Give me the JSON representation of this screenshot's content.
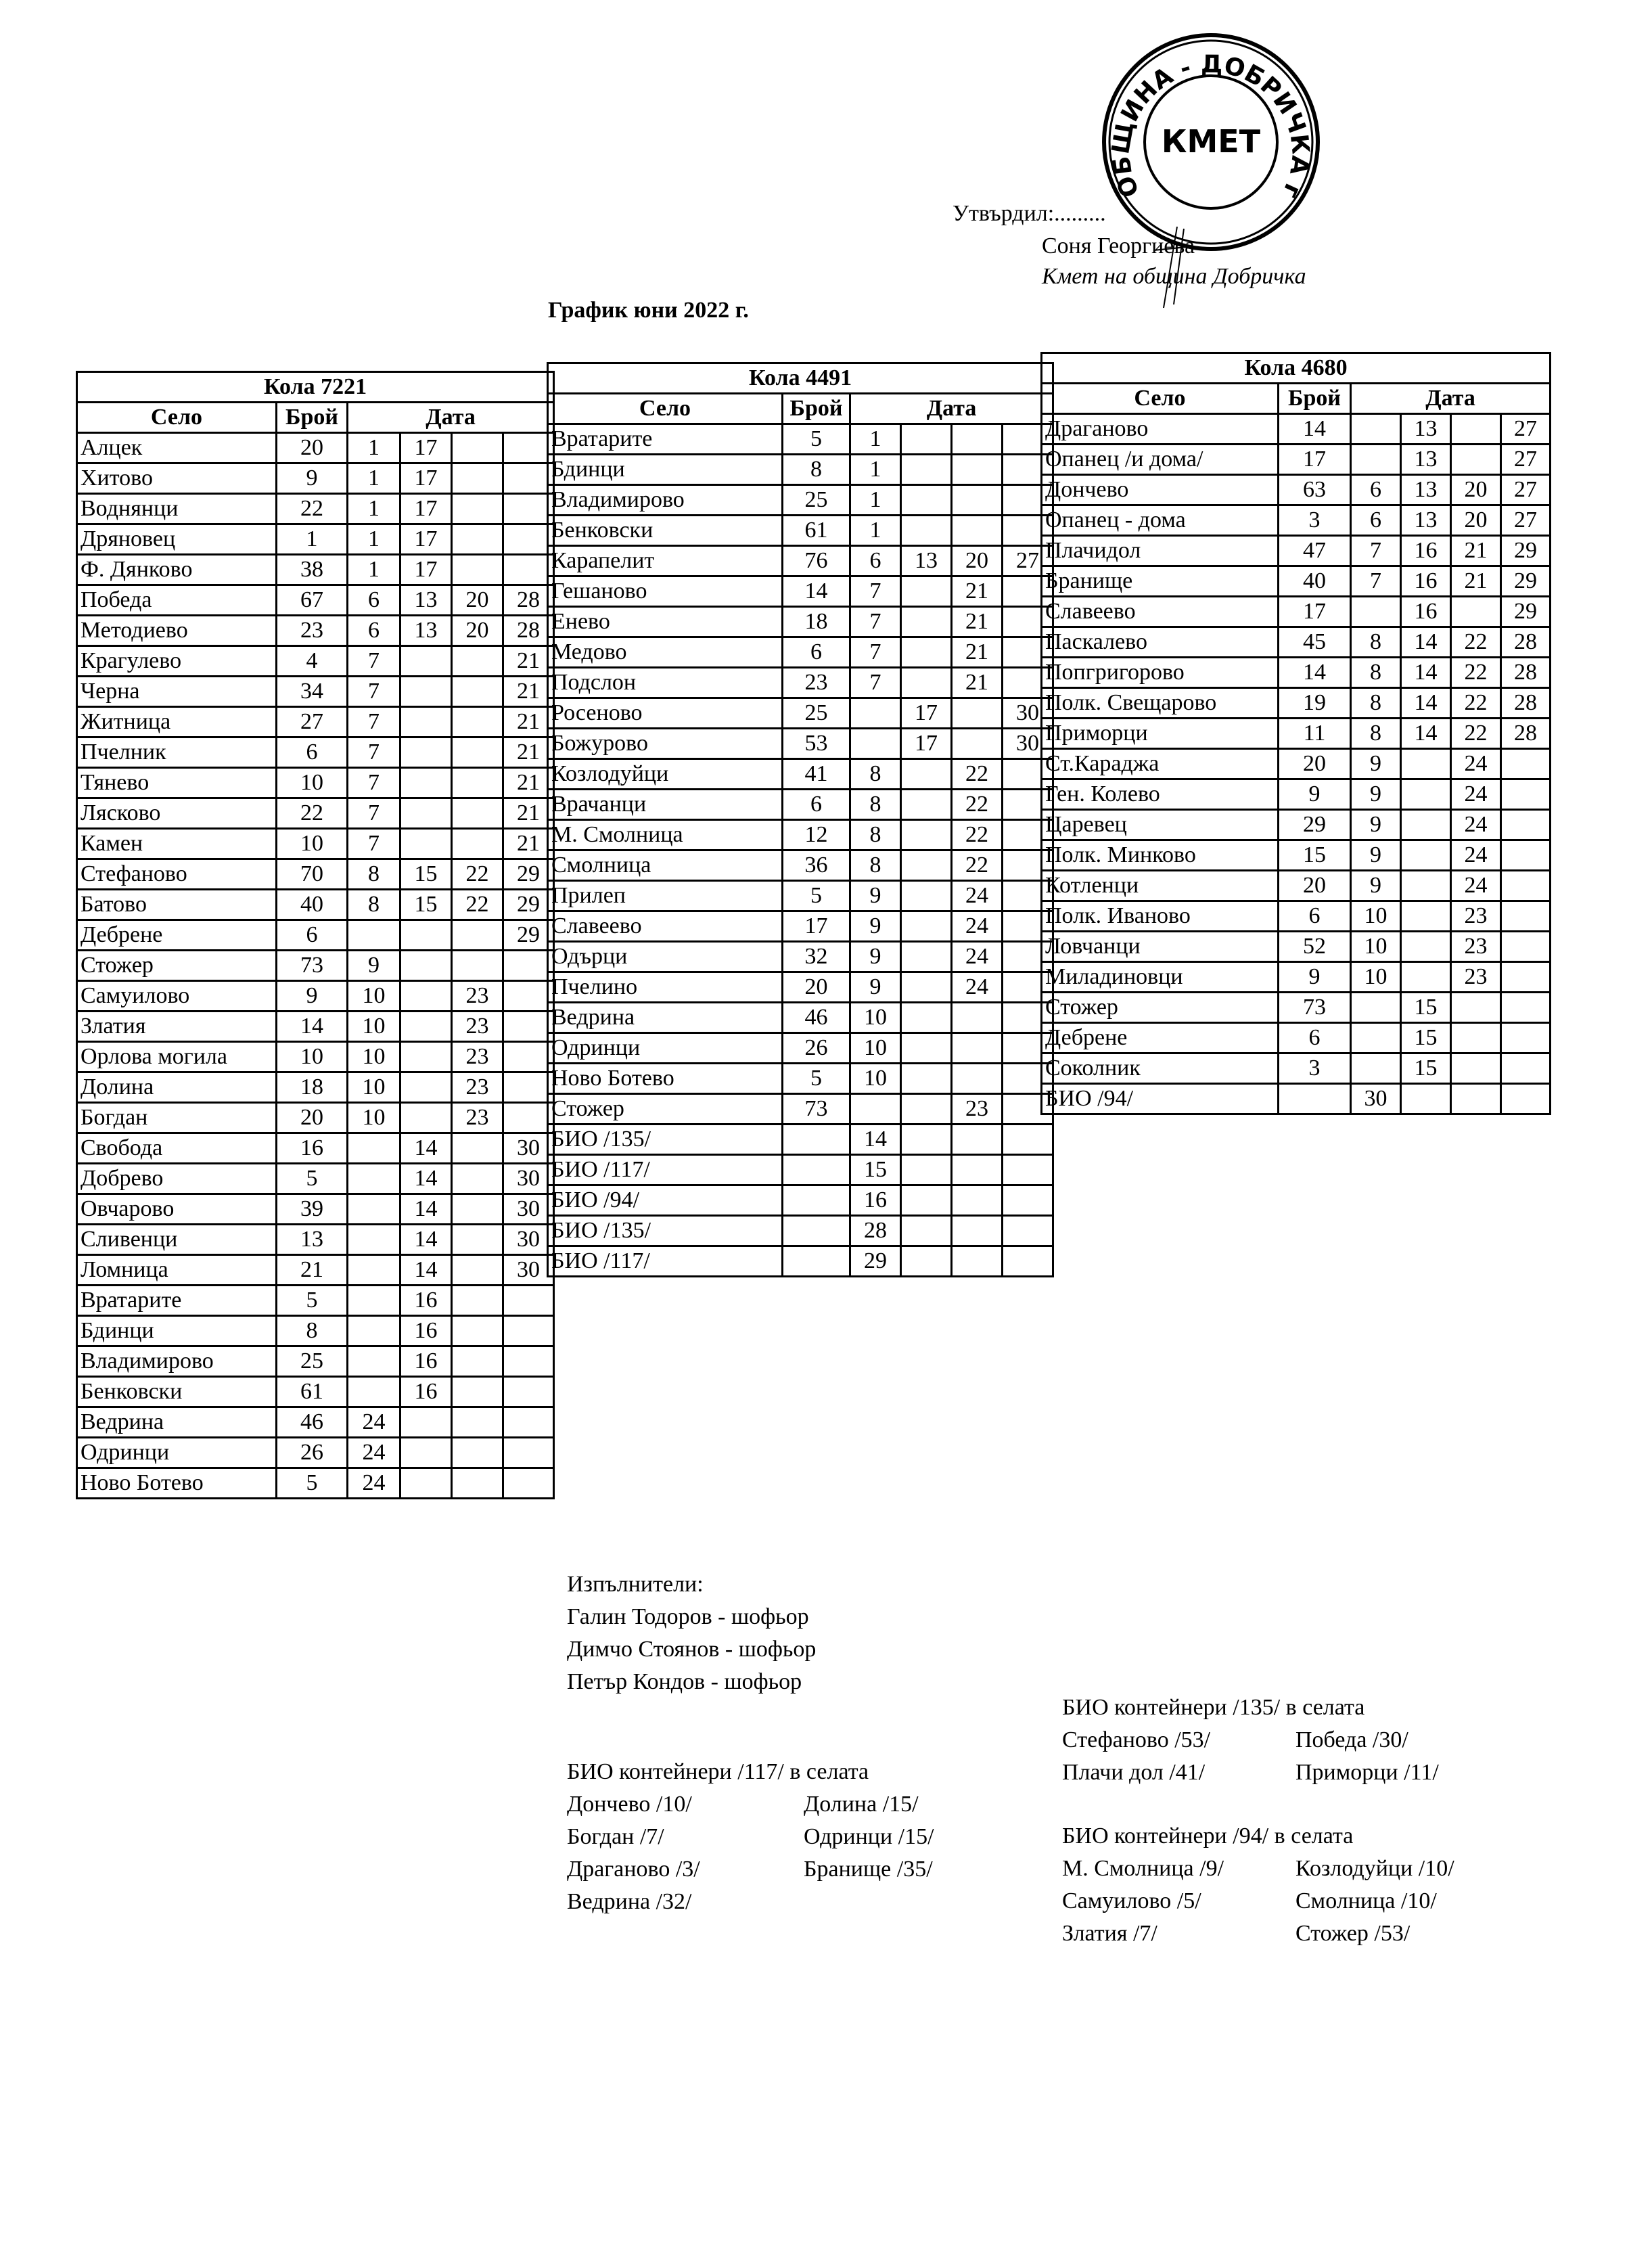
{
  "approval": {
    "approved_label": "Утвърдил:.........",
    "name": "Соня Георгиева",
    "position": "Кмет  на община Добричка",
    "stamp_text": "ОБЩИНА - ДОБРИЧКА гр. Добрич",
    "stamp_center": "КМЕТ"
  },
  "document_title": "График юни 2022 г.",
  "tables": [
    {
      "title": "Кола 7221",
      "headers": {
        "village": "Село",
        "count": "Брой",
        "date": "Дата"
      },
      "rows": [
        {
          "village": "Алцек",
          "count": "20",
          "dates": [
            "1",
            "17",
            "",
            ""
          ]
        },
        {
          "village": "Хитово",
          "count": "9",
          "dates": [
            "1",
            "17",
            "",
            ""
          ]
        },
        {
          "village": "Воднянци",
          "count": "22",
          "dates": [
            "1",
            "17",
            "",
            ""
          ]
        },
        {
          "village": "Дряновец",
          "count": "1",
          "dates": [
            "1",
            "17",
            "",
            ""
          ]
        },
        {
          "village": "Ф. Дянково",
          "count": "38",
          "dates": [
            "1",
            "17",
            "",
            ""
          ]
        },
        {
          "village": "Победа",
          "count": "67",
          "dates": [
            "6",
            "13",
            "20",
            "28"
          ]
        },
        {
          "village": "Методиево",
          "count": "23",
          "dates": [
            "6",
            "13",
            "20",
            "28"
          ]
        },
        {
          "village": "Крагулево",
          "count": "4",
          "dates": [
            "7",
            "",
            "",
            "21"
          ]
        },
        {
          "village": "Черна",
          "count": "34",
          "dates": [
            "7",
            "",
            "",
            "21"
          ]
        },
        {
          "village": "Житница",
          "count": "27",
          "dates": [
            "7",
            "",
            "",
            "21"
          ]
        },
        {
          "village": "Пчелник",
          "count": "6",
          "dates": [
            "7",
            "",
            "",
            "21"
          ]
        },
        {
          "village": "Тянево",
          "count": "10",
          "dates": [
            "7",
            "",
            "",
            "21"
          ]
        },
        {
          "village": "Лясково",
          "count": "22",
          "dates": [
            "7",
            "",
            "",
            "21"
          ]
        },
        {
          "village": "Камен",
          "count": "10",
          "dates": [
            "7",
            "",
            "",
            "21"
          ]
        },
        {
          "village": "Стефаново",
          "count": "70",
          "dates": [
            "8",
            "15",
            "22",
            "29"
          ]
        },
        {
          "village": "Батово",
          "count": "40",
          "dates": [
            "8",
            "15",
            "22",
            "29"
          ]
        },
        {
          "village": "Дебрене",
          "count": "6",
          "dates": [
            "",
            "",
            "",
            "29"
          ]
        },
        {
          "village": "Стожер",
          "count": "73",
          "dates": [
            "9",
            "",
            "",
            ""
          ]
        },
        {
          "village": "Самуилово",
          "count": "9",
          "dates": [
            "10",
            "",
            "23",
            ""
          ]
        },
        {
          "village": "Златия",
          "count": "14",
          "dates": [
            "10",
            "",
            "23",
            ""
          ]
        },
        {
          "village": "Орлова могила",
          "count": "10",
          "dates": [
            "10",
            "",
            "23",
            ""
          ]
        },
        {
          "village": "Долина",
          "count": "18",
          "dates": [
            "10",
            "",
            "23",
            ""
          ]
        },
        {
          "village": "Богдан",
          "count": "20",
          "dates": [
            "10",
            "",
            "23",
            ""
          ]
        },
        {
          "village": "Свобода",
          "count": "16",
          "dates": [
            "",
            "14",
            "",
            "30"
          ]
        },
        {
          "village": "Добрево",
          "count": "5",
          "dates": [
            "",
            "14",
            "",
            "30"
          ]
        },
        {
          "village": "Овчарово",
          "count": "39",
          "dates": [
            "",
            "14",
            "",
            "30"
          ]
        },
        {
          "village": "Сливенци",
          "count": "13",
          "dates": [
            "",
            "14",
            "",
            "30"
          ]
        },
        {
          "village": "Ломница",
          "count": "21",
          "dates": [
            "",
            "14",
            "",
            "30"
          ]
        },
        {
          "village": "Вратарите",
          "count": "5",
          "dates": [
            "",
            "16",
            "",
            ""
          ]
        },
        {
          "village": "Бдинци",
          "count": "8",
          "dates": [
            "",
            "16",
            "",
            ""
          ]
        },
        {
          "village": "Владимирово",
          "count": "25",
          "dates": [
            "",
            "16",
            "",
            ""
          ]
        },
        {
          "village": "Бенковски",
          "count": "61",
          "dates": [
            "",
            "16",
            "",
            ""
          ]
        },
        {
          "village": "Ведрина",
          "count": "46",
          "dates": [
            "24",
            "",
            "",
            ""
          ]
        },
        {
          "village": "Одринци",
          "count": "26",
          "dates": [
            "24",
            "",
            "",
            ""
          ]
        },
        {
          "village": "Ново Ботево",
          "count": "5",
          "dates": [
            "24",
            "",
            "",
            ""
          ]
        }
      ]
    },
    {
      "title": "Кола 4491",
      "headers": {
        "village": "Село",
        "count": "Брой",
        "date": "Дата"
      },
      "rows": [
        {
          "village": "Вратарите",
          "count": "5",
          "dates": [
            "1",
            "",
            "",
            ""
          ]
        },
        {
          "village": "Бдинци",
          "count": "8",
          "dates": [
            "1",
            "",
            "",
            ""
          ]
        },
        {
          "village": "Владимирово",
          "count": "25",
          "dates": [
            "1",
            "",
            "",
            ""
          ]
        },
        {
          "village": "Бенковски",
          "count": "61",
          "dates": [
            "1",
            "",
            "",
            ""
          ]
        },
        {
          "village": "Карапелит",
          "count": "76",
          "dates": [
            "6",
            "13",
            "20",
            "27"
          ]
        },
        {
          "village": "Гешаново",
          "count": "14",
          "dates": [
            "7",
            "",
            "21",
            ""
          ]
        },
        {
          "village": "Енево",
          "count": "18",
          "dates": [
            "7",
            "",
            "21",
            ""
          ]
        },
        {
          "village": "Медово",
          "count": "6",
          "dates": [
            "7",
            "",
            "21",
            ""
          ]
        },
        {
          "village": "Подслон",
          "count": "23",
          "dates": [
            "7",
            "",
            "21",
            ""
          ]
        },
        {
          "village": "Росеново",
          "count": "25",
          "dates": [
            "",
            "17",
            "",
            "30"
          ]
        },
        {
          "village": "Божурово",
          "count": "53",
          "dates": [
            "",
            "17",
            "",
            "30"
          ]
        },
        {
          "village": "Козлодуйци",
          "count": "41",
          "dates": [
            "8",
            "",
            "22",
            ""
          ]
        },
        {
          "village": "Врачанци",
          "count": "6",
          "dates": [
            "8",
            "",
            "22",
            ""
          ]
        },
        {
          "village": "М. Смолница",
          "count": "12",
          "dates": [
            "8",
            "",
            "22",
            ""
          ]
        },
        {
          "village": "Смолница",
          "count": "36",
          "dates": [
            "8",
            "",
            "22",
            ""
          ]
        },
        {
          "village": "Прилеп",
          "count": "5",
          "dates": [
            "9",
            "",
            "24",
            ""
          ]
        },
        {
          "village": "Славеево",
          "count": "17",
          "dates": [
            "9",
            "",
            "24",
            ""
          ]
        },
        {
          "village": "Одърци",
          "count": "32",
          "dates": [
            "9",
            "",
            "24",
            ""
          ]
        },
        {
          "village": "Пчелино",
          "count": "20",
          "dates": [
            "9",
            "",
            "24",
            ""
          ]
        },
        {
          "village": "Ведрина",
          "count": "46",
          "dates": [
            "10",
            "",
            "",
            ""
          ]
        },
        {
          "village": "Одринци",
          "count": "26",
          "dates": [
            "10",
            "",
            "",
            ""
          ]
        },
        {
          "village": "Ново Ботево",
          "count": "5",
          "dates": [
            "10",
            "",
            "",
            ""
          ]
        },
        {
          "village": "Стожер",
          "count": "73",
          "dates": [
            "",
            "",
            "23",
            ""
          ]
        },
        {
          "village": "БИО /135/",
          "count": "",
          "dates": [
            "14",
            "",
            "",
            ""
          ]
        },
        {
          "village": "БИО /117/",
          "count": "",
          "dates": [
            "15",
            "",
            "",
            ""
          ]
        },
        {
          "village": "БИО /94/",
          "count": "",
          "dates": [
            "16",
            "",
            "",
            ""
          ]
        },
        {
          "village": "БИО /135/",
          "count": "",
          "dates": [
            "28",
            "",
            "",
            ""
          ]
        },
        {
          "village": "БИО /117/",
          "count": "",
          "dates": [
            "29",
            "",
            "",
            ""
          ]
        }
      ]
    },
    {
      "title": "Кола 4680",
      "headers": {
        "village": "Село",
        "count": "Брой",
        "date": "Дата"
      },
      "rows": [
        {
          "village": "Драганово",
          "count": "14",
          "dates": [
            "",
            "13",
            "",
            "27"
          ]
        },
        {
          "village": "Опанец /и дома/",
          "count": "17",
          "dates": [
            "",
            "13",
            "",
            "27"
          ]
        },
        {
          "village": "Дончево",
          "count": "63",
          "dates": [
            "6",
            "13",
            "20",
            "27"
          ]
        },
        {
          "village": "Опанец - дома",
          "count": "3",
          "dates": [
            "6",
            "13",
            "20",
            "27"
          ]
        },
        {
          "village": "Плачидол",
          "count": "47",
          "dates": [
            "7",
            "16",
            "21",
            "29"
          ]
        },
        {
          "village": "Бранище",
          "count": "40",
          "dates": [
            "7",
            "16",
            "21",
            "29"
          ]
        },
        {
          "village": "Славеево",
          "count": "17",
          "dates": [
            "",
            "16",
            "",
            "29"
          ]
        },
        {
          "village": "Паскалево",
          "count": "45",
          "dates": [
            "8",
            "14",
            "22",
            "28"
          ]
        },
        {
          "village": "Попгригорово",
          "count": "14",
          "dates": [
            "8",
            "14",
            "22",
            "28"
          ]
        },
        {
          "village": "Полк. Свещарово",
          "count": "19",
          "dates": [
            "8",
            "14",
            "22",
            "28"
          ]
        },
        {
          "village": "Приморци",
          "count": "11",
          "dates": [
            "8",
            "14",
            "22",
            "28"
          ]
        },
        {
          "village": "Ст.Караджа",
          "count": "20",
          "dates": [
            "9",
            "",
            "24",
            ""
          ]
        },
        {
          "village": "Ген. Колево",
          "count": "9",
          "dates": [
            "9",
            "",
            "24",
            ""
          ]
        },
        {
          "village": "Царевец",
          "count": "29",
          "dates": [
            "9",
            "",
            "24",
            ""
          ]
        },
        {
          "village": "Полк. Минково",
          "count": "15",
          "dates": [
            "9",
            "",
            "24",
            ""
          ]
        },
        {
          "village": "Котленци",
          "count": "20",
          "dates": [
            "9",
            "",
            "24",
            ""
          ]
        },
        {
          "village": "Полк. Иваново",
          "count": "6",
          "dates": [
            "10",
            "",
            "23",
            ""
          ]
        },
        {
          "village": "Ловчанци",
          "count": "52",
          "dates": [
            "10",
            "",
            "23",
            ""
          ]
        },
        {
          "village": "Миладиновци",
          "count": "9",
          "dates": [
            "10",
            "",
            "23",
            ""
          ]
        },
        {
          "village": "Стожер",
          "count": "73",
          "dates": [
            "",
            "15",
            "",
            ""
          ]
        },
        {
          "village": "Дебрене",
          "count": "6",
          "dates": [
            "",
            "15",
            "",
            ""
          ]
        },
        {
          "village": "Соколник",
          "count": "3",
          "dates": [
            "",
            "15",
            "",
            ""
          ]
        },
        {
          "village": "БИО /94/",
          "count": "",
          "dates": [
            "30",
            "",
            "",
            ""
          ]
        }
      ]
    }
  ],
  "executors": {
    "label": "Изпълнители:",
    "people": [
      "Галин Тодоров - шофьор",
      "Димчо Стоянов - шофьор",
      "Петър Кондов - шофьор"
    ]
  },
  "bio_117": {
    "title": "БИО контейнери /117/ в селата",
    "items": [
      "Дончево /10/",
      "Долина /15/",
      "Богдан /7/",
      "Одринци /15/",
      "Драганово /3/",
      "Бранище /35/",
      "Ведрина /32/"
    ]
  },
  "bio_135": {
    "title": "БИО контейнери /135/ в селата",
    "items": [
      "Стефаново /53/",
      "Победа /30/",
      "Плачи дол /41/",
      "Приморци /11/"
    ]
  },
  "bio_94": {
    "title": "БИО контейнери /94/ в селата",
    "items": [
      "М. Смолница /9/",
      "Козлодуйци /10/",
      "Самуилово /5/",
      "Смолница /10/",
      "Златия /7/",
      "Стожер /53/"
    ]
  }
}
